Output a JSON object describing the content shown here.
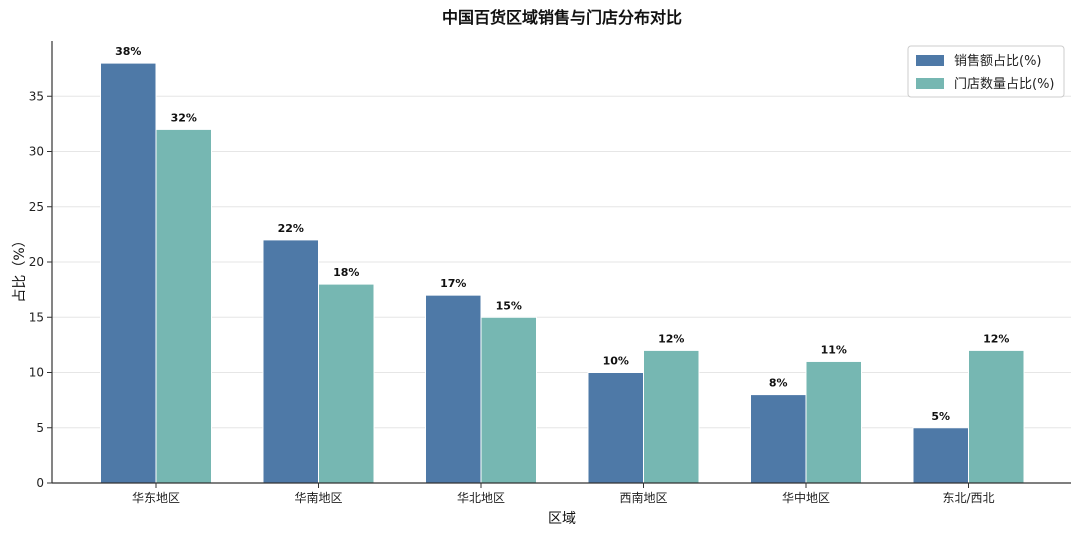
{
  "chart_data": {
    "type": "bar",
    "title": "中国百货区域销售与门店分布对比",
    "xlabel": "区域",
    "ylabel": "占比（%）",
    "categories": [
      "华东地区",
      "华南地区",
      "华北地区",
      "西南地区",
      "华中地区",
      "东北/西北"
    ],
    "series": [
      {
        "name": "销售额占比(%)",
        "values": [
          38,
          22,
          17,
          10,
          8,
          5
        ],
        "color": "#4e79a7"
      },
      {
        "name": "门店数量占比(%)",
        "values": [
          32,
          18,
          15,
          12,
          11,
          12
        ],
        "color": "#76b7b2"
      }
    ],
    "data_labels": [
      [
        "38%",
        "22%",
        "17%",
        "10%",
        "8%",
        "5%"
      ],
      [
        "32%",
        "18%",
        "15%",
        "12%",
        "11%",
        "12%"
      ]
    ],
    "ylim": [
      0,
      40
    ],
    "yticks": [
      0,
      5,
      10,
      15,
      20,
      25,
      30,
      35
    ],
    "grid": "horizontal",
    "legend": "top-right"
  }
}
